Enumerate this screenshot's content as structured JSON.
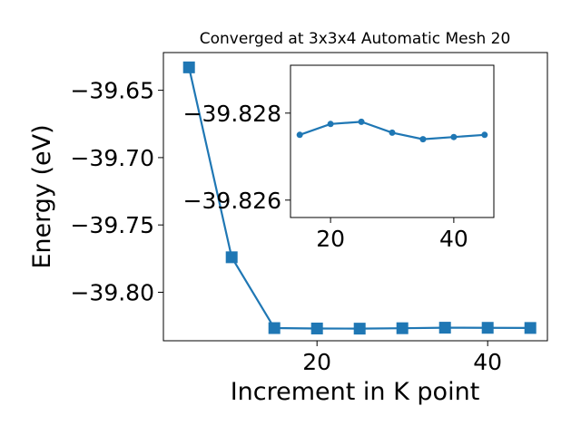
{
  "chart_data": [
    {
      "type": "line",
      "title": "Converged at 3x3x4 Automatic Mesh 20",
      "xlabel": "Increment in K point",
      "ylabel": "Energy (eV)",
      "xlim": [
        2,
        47
      ],
      "ylim": [
        -39.836,
        -39.622
      ],
      "xticks": [
        20,
        40
      ],
      "xtick_labels": [
        "20",
        "40"
      ],
      "yticks": [
        -39.65,
        -39.7,
        -39.75,
        -39.8
      ],
      "ytick_labels": [
        "−39.65",
        "−39.70",
        "−39.75",
        "−39.80"
      ],
      "grid": false,
      "legend": "none",
      "series": [
        {
          "marker": "square",
          "color": "#1f77b4",
          "x": [
            5,
            10,
            15,
            20,
            25,
            30,
            35,
            40,
            45
          ],
          "y": [
            -39.633,
            -39.774,
            -39.8266,
            -39.8269,
            -39.827,
            -39.8267,
            -39.8263,
            -39.8264,
            -39.8265
          ]
        }
      ]
    },
    {
      "type": "line",
      "title": "",
      "xlabel": "",
      "ylabel": "",
      "inset": true,
      "y_inverted": true,
      "xlim": [
        13.5,
        46.5
      ],
      "ylim": [
        -39.8256,
        -39.8291
      ],
      "xticks": [
        20,
        40
      ],
      "xtick_labels": [
        "20",
        "40"
      ],
      "yticks": [
        -39.828,
        -39.826
      ],
      "ytick_labels": [
        "−39.828",
        "−39.826"
      ],
      "grid": false,
      "series": [
        {
          "marker": "circle",
          "color": "#1f77b4",
          "x": [
            15,
            20,
            25,
            30,
            35,
            40,
            45
          ],
          "y": [
            -39.8275,
            -39.82775,
            -39.8278,
            -39.82755,
            -39.8274,
            -39.82745,
            -39.8275
          ]
        }
      ]
    }
  ]
}
